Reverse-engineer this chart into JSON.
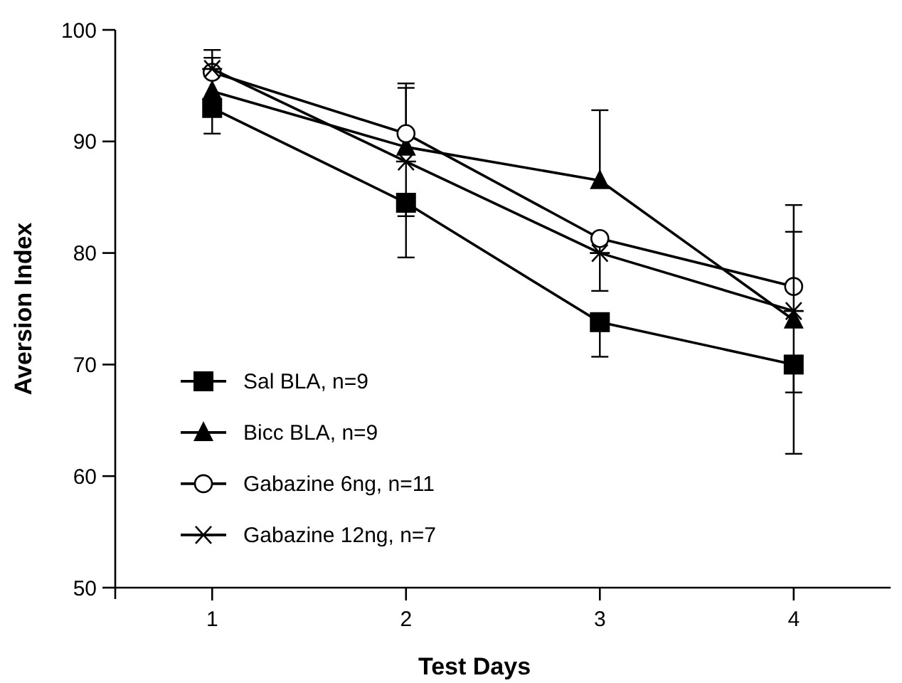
{
  "chart_data": {
    "type": "line",
    "xlabel": "Test Days",
    "ylabel": "Aversion Index",
    "x": [
      1,
      2,
      3,
      4
    ],
    "xlim": [
      0.5,
      4.5
    ],
    "xticks": [
      1,
      2,
      3,
      4
    ],
    "ylim": [
      50,
      100
    ],
    "yticks": [
      50,
      60,
      70,
      80,
      90,
      100
    ],
    "legend": "bottom left",
    "grid": false,
    "series": [
      {
        "name": "Sal BLA, n=9",
        "color": "#000000",
        "marker": "square",
        "values": [
          93,
          84.5,
          73.8,
          70
        ],
        "errors": [
          [
            90.7,
            93
          ],
          [
            79.6,
            84.5
          ],
          [
            70.7,
            73.8
          ],
          [
            62,
            70
          ]
        ]
      },
      {
        "name": "Bicc BLA, n=9",
        "color": "#000000",
        "marker": "triangle",
        "values": [
          94.5,
          89.5,
          86.5,
          74
        ],
        "errors": [
          null,
          [
            89.5,
            94.8
          ],
          [
            86.5,
            92.8
          ],
          [
            67.5,
            74
          ]
        ]
      },
      {
        "name": "Gabazine 6ng, n=11",
        "color": "#000000",
        "marker": "circle",
        "values": [
          96.2,
          90.7,
          81.3,
          77
        ],
        "errors": [
          [
            96.2,
            97.5
          ],
          [
            90.7,
            95.2
          ],
          [
            76.6,
            81.3
          ],
          [
            77,
            84.3
          ]
        ]
      },
      {
        "name": "Gabazine 12ng, n=7",
        "color": "#000000",
        "marker": "cross",
        "values": [
          96.5,
          88.2,
          80,
          74.8
        ],
        "errors": [
          [
            96.5,
            98.2
          ],
          [
            83.3,
            88.2
          ],
          null,
          [
            74.8,
            81.9
          ]
        ]
      }
    ]
  }
}
